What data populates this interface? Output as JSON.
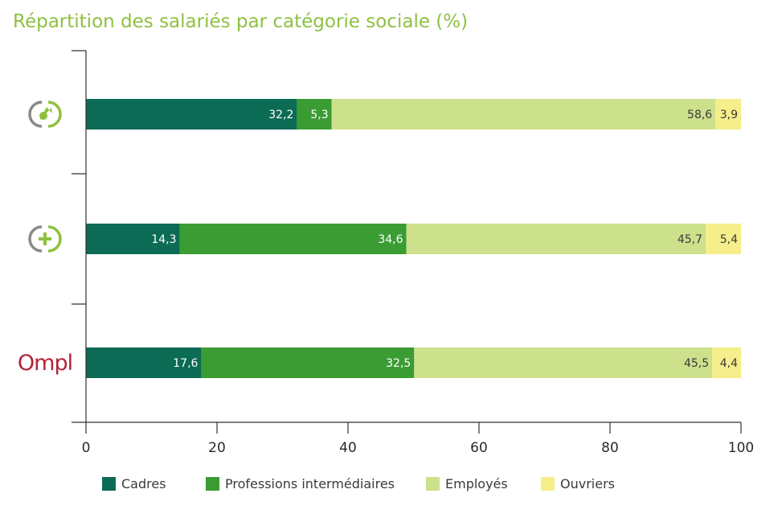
{
  "chart_data": {
    "type": "bar",
    "orientation": "horizontal",
    "stacked": true,
    "title": "Répartition des salariés par catégorie sociale (%)",
    "categories": [
      "",
      "",
      "Ompl"
    ],
    "category_icons": [
      "green-arrow-circle-icon",
      "green-plus-circle-icon",
      "ompl-logo"
    ],
    "series": [
      {
        "name": "Cadres",
        "color": "#0c6b55",
        "values": [
          32.2,
          14.3,
          17.6
        ],
        "labels": [
          "32,2",
          "14,3",
          "17,6"
        ]
      },
      {
        "name": "Professions intermédiaires",
        "color": "#3a9c33",
        "values": [
          5.3,
          34.6,
          32.5
        ],
        "labels": [
          "5,3",
          "34,6",
          "32,5"
        ]
      },
      {
        "name": "Employés",
        "color": "#cde08c",
        "values": [
          58.6,
          45.7,
          45.5
        ],
        "labels": [
          "58,6",
          "45,7",
          "45,5"
        ]
      },
      {
        "name": "Ouvriers",
        "color": "#f6ee8a",
        "values": [
          3.9,
          5.4,
          4.4
        ],
        "labels": [
          "3,9",
          "5,4",
          "4,4"
        ]
      }
    ],
    "xlim": [
      0,
      100
    ],
    "xticks": [
      0,
      20,
      40,
      60,
      80,
      100
    ],
    "xlabel": "",
    "ylabel": "",
    "grid": false,
    "legend_position": "bottom"
  },
  "colors": {
    "title": "#8dc13f",
    "axis": "#333333",
    "label_light": "#ffffff",
    "label_dark": "#3a3a3a",
    "ompl_logo": "#b0243a",
    "icon_green": "#8dc13f",
    "icon_gray": "#8a8a8a"
  }
}
